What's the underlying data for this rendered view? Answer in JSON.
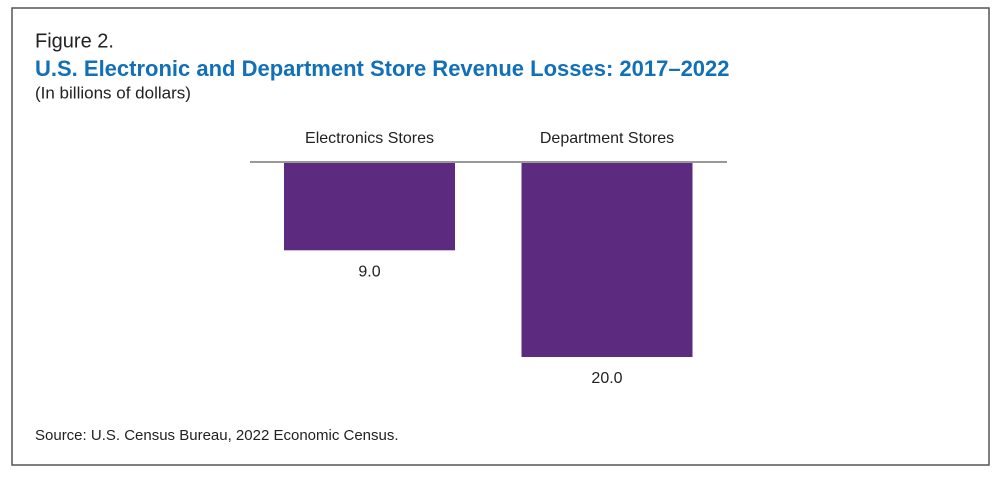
{
  "chart_data": {
    "type": "bar",
    "figure_label": "Figure 2.",
    "title": "U.S. Electronic and Department Store Revenue Losses: 2017–2022",
    "subtitle": "(In billions of dollars)",
    "categories": [
      "Electronics Stores",
      "Department Stores"
    ],
    "values": [
      9,
      20
    ],
    "value_labels": [
      "9.0",
      "20.0"
    ],
    "color": "#5c2a7e",
    "source": "Source: U.S. Census Bureau, 2022 Economic Census."
  }
}
